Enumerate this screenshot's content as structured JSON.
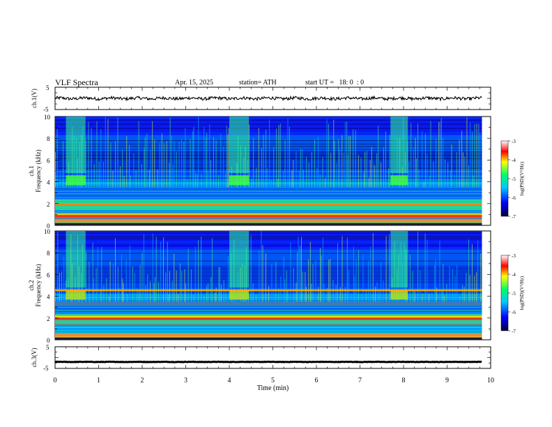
{
  "header": {
    "title": "VLF Spectra",
    "date": "Apr. 15, 2025",
    "station": "station= ATH",
    "start": "start UT =   18: 0  : 0"
  },
  "chart_data": [
    {
      "type": "line",
      "ylabel": "ch.1(V)",
      "ylim": [
        -5,
        5
      ],
      "yticks": [
        "5",
        "-5"
      ],
      "description_series": "waveform",
      "x_range_min": [
        0,
        9.8
      ],
      "mean": 0,
      "amplitude_approx": 0.7,
      "line_color": "#000000"
    },
    {
      "type": "heatmap",
      "ylabel": "ch.1\nFrequency (kHz)",
      "ylim": [
        0,
        10
      ],
      "yticks": [
        "0",
        "2",
        "4",
        "6",
        "8",
        "10"
      ],
      "x_range_min": [
        0,
        9.8
      ],
      "colorbar": {
        "label": "log(PSD)(V²/Hz)",
        "range": [
          -7,
          -3
        ],
        "ticks": [
          "-3",
          "-4",
          "-5",
          "-6",
          "-7"
        ]
      },
      "bursts_min": [
        [
          0.25,
          0.7
        ],
        [
          4.0,
          4.45
        ],
        [
          7.7,
          8.1
        ]
      ],
      "bands_kHz": [
        [
          0.6,
          2.4
        ],
        [
          3.6,
          4.3
        ]
      ],
      "colormap": [
        "#00006a",
        "#0000ff",
        "#00c8ff",
        "#00ff66",
        "#ffff00",
        "#ff0000",
        "#ffffff"
      ]
    },
    {
      "type": "heatmap",
      "ylabel": "ch.2\nFrequency (kHz)",
      "ylim": [
        0,
        10
      ],
      "yticks": [
        "0",
        "2",
        "4",
        "6",
        "8",
        "10"
      ],
      "x_range_min": [
        0,
        9.8
      ],
      "colorbar": {
        "label": "log(PSD)(V²/Hz)",
        "range": [
          -7,
          -3
        ],
        "ticks": [
          "-3",
          "-4",
          "-5",
          "-6",
          "-7"
        ]
      },
      "bursts_min": [
        [
          0.25,
          0.7
        ],
        [
          4.0,
          4.45
        ],
        [
          7.7,
          8.1
        ]
      ],
      "bands_kHz": [
        [
          0.6,
          4.8
        ]
      ],
      "colormap": [
        "#00006a",
        "#0000ff",
        "#00c8ff",
        "#00ff66",
        "#ffff00",
        "#ff0000",
        "#ffffff"
      ]
    },
    {
      "type": "line",
      "ylabel": "ch.3(V)",
      "ylim": [
        -5,
        5
      ],
      "yticks": [
        "5",
        "-5"
      ],
      "x_range_min": [
        0,
        9.8
      ],
      "mean": -2,
      "amplitude_approx": 0.1,
      "line_color": "#000000"
    }
  ],
  "xaxis": {
    "label": "Time  (min)",
    "range": [
      0,
      10
    ],
    "ticks": [
      "0",
      "1",
      "2",
      "3",
      "4",
      "5",
      "6",
      "7",
      "8",
      "9",
      "10"
    ]
  }
}
